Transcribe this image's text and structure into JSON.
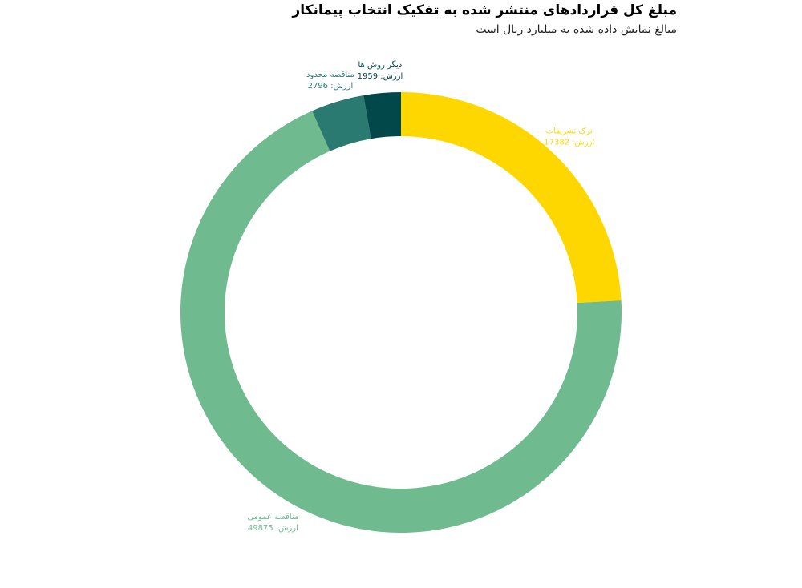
{
  "header": {
    "title": "مبلغ کل قراردادهای منتشر شده به تفکیک انتخاب پیمانکار",
    "subtitle": "مبالغ نمایش داده شده به میلیارد ریال است"
  },
  "value_prefix": "ارزش: ",
  "chart_data": {
    "type": "pie",
    "donut": true,
    "title": "مبلغ کل قراردادهای منتشر شده به تفکیک انتخاب پیمانکار",
    "subtitle": "مبالغ نمایش داده شده به میلیارد ریال است",
    "slices": [
      {
        "label": "ترک تشریفات",
        "value": 17382,
        "color": "#FFD700"
      },
      {
        "label": "مناقصه عمومی",
        "value": 49875,
        "color": "#6FBA8F"
      },
      {
        "label": "مناقصه محدود",
        "value": 2796,
        "color": "#2B7A72"
      },
      {
        "label": "دیگر روش ها",
        "value": 1959,
        "color": "#02474A"
      }
    ]
  }
}
